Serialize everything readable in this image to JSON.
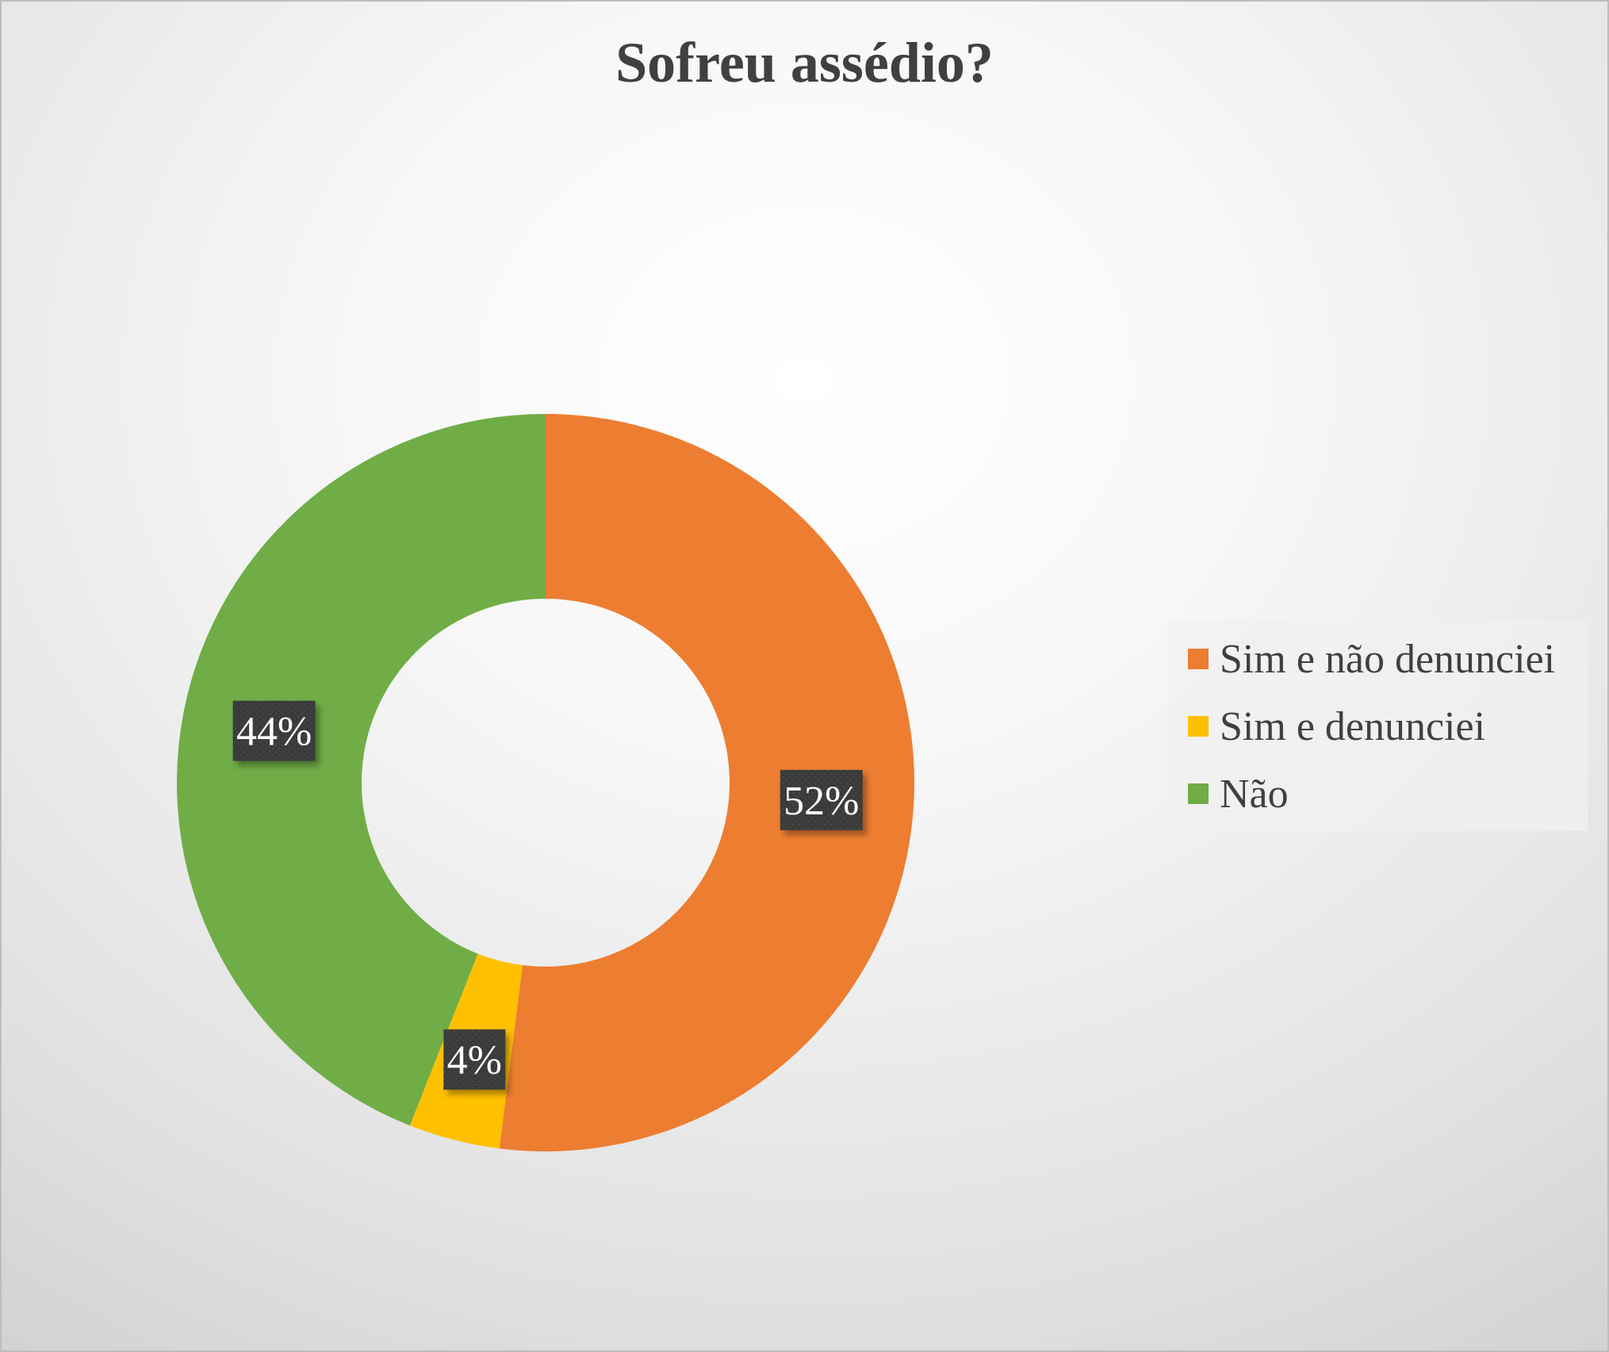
{
  "chart_data": {
    "type": "pie",
    "variant": "donut",
    "title": "Sofreu assédio?",
    "categories": [
      "Sim e não denunciei",
      "Sim e denunciei",
      "Não"
    ],
    "values": [
      52,
      4,
      44
    ],
    "unit": "%",
    "data_labels": [
      "52%",
      "4%",
      "44%"
    ],
    "colors": [
      "#ED7D31",
      "#FFC000",
      "#70AD47"
    ],
    "legend_position": "right",
    "start_angle_deg": 0,
    "direction": "clockwise"
  },
  "style": {
    "label_box_color": "#3a3a3a",
    "label_text_color": "#ffffff",
    "title_color": "#404040"
  }
}
